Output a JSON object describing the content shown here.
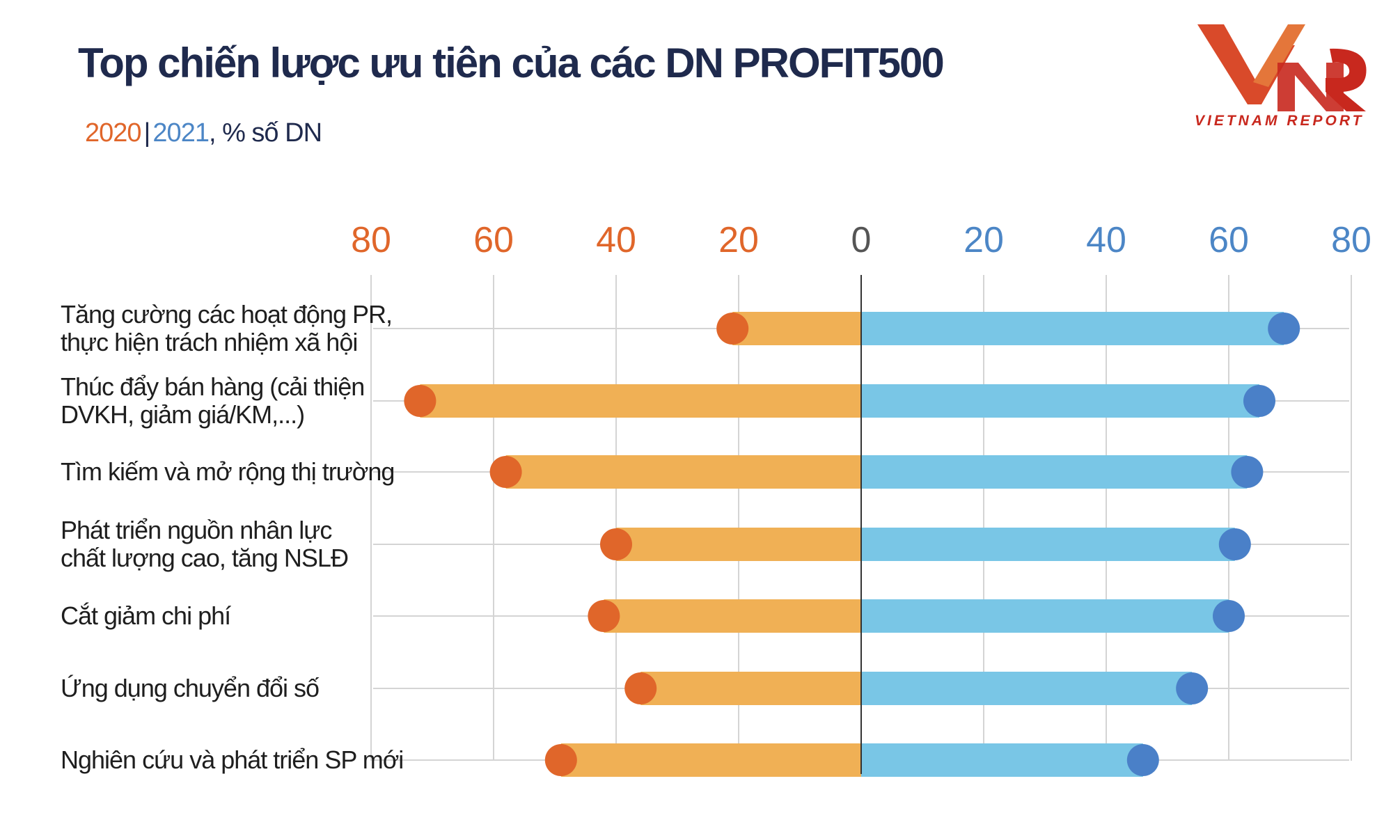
{
  "title": "Top chiến lược ưu tiên của các DN PROFIT500",
  "subtitle": {
    "year_2020": "2020",
    "separator": "|",
    "year_2021": "2021",
    "unit": ", % số DN"
  },
  "logo": {
    "mark": "VNR",
    "text": "VIETNAM REPORT",
    "color": "#c8281e"
  },
  "colors": {
    "bar_2020": "#f0b055",
    "dot_2020": "#e0662a",
    "bar_2021": "#79c6e6",
    "dot_2021": "#4a80c8",
    "tick_2020": "#e0662a",
    "tick_2021": "#4c86c6"
  },
  "chart_data": {
    "type": "bar",
    "orientation": "horizontal-diverging",
    "categories": [
      [
        "Tăng cường các hoạt động PR,",
        "thực hiện trách nhiệm xã hội"
      ],
      [
        "Thúc đẩy bán hàng (cải thiện",
        "DVKH, giảm giá/KM,...)"
      ],
      [
        "Tìm kiếm và mở rộng thị trường"
      ],
      [
        "Phát triển nguồn nhân lực",
        "chất lượng cao, tăng NSLĐ"
      ],
      [
        "Cắt giảm chi phí"
      ],
      [
        "Ứng dụng chuyển đổi số"
      ],
      [
        "Nghiên cứu và phát triển SP mới"
      ]
    ],
    "series": [
      {
        "name": "2020",
        "side": "left",
        "values": [
          21,
          72,
          58,
          40,
          42,
          36,
          49
        ]
      },
      {
        "name": "2021",
        "side": "right",
        "values": [
          69,
          65,
          63,
          61,
          60,
          54,
          46
        ]
      }
    ],
    "ticks": [
      "80",
      "60",
      "40",
      "20",
      "0",
      "20",
      "40",
      "60",
      "80"
    ],
    "xlim": [
      -80,
      80
    ],
    "grid": true
  }
}
